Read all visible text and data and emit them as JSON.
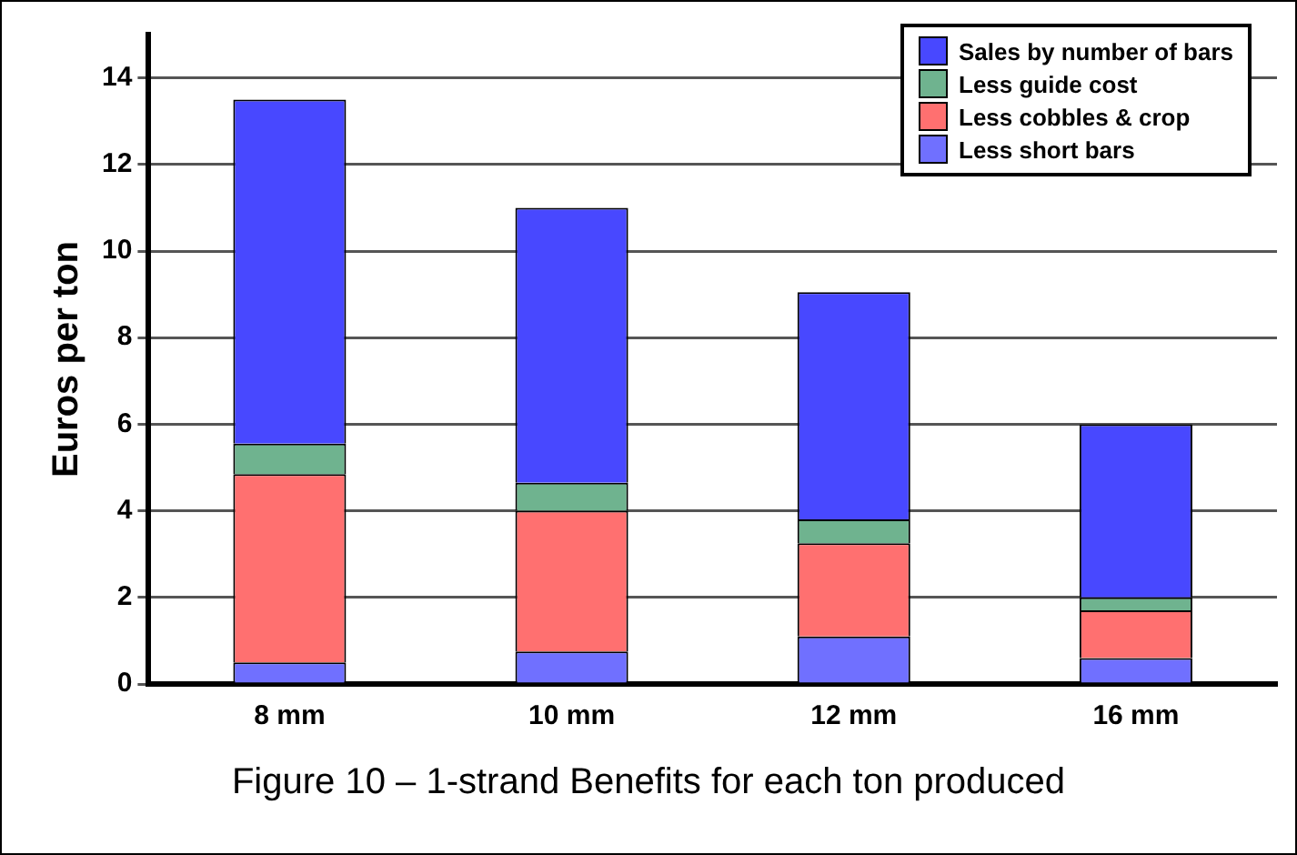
{
  "chart_data": {
    "type": "bar",
    "stacked": true,
    "ylabel": "Euros per ton",
    "categories": [
      "8 mm",
      "10 mm",
      "12 mm",
      "16 mm"
    ],
    "ylim": [
      0,
      15
    ],
    "yticks": [
      0,
      2,
      4,
      6,
      8,
      10,
      12,
      14
    ],
    "grid": "y",
    "legend": "top right",
    "annotations": [
      "Figure 10 – 1-strand Benefits for each ton produced"
    ],
    "series": [
      {
        "name": "Less short bars",
        "color": "#7070ff",
        "values": [
          0.5,
          0.75,
          1.1,
          0.6
        ]
      },
      {
        "name": "Less cobbles & crop",
        "color": "#ff7070",
        "values": [
          4.35,
          3.25,
          2.15,
          1.1
        ]
      },
      {
        "name": "Less guide cost",
        "color": "#6fb38f",
        "values": [
          0.7,
          0.65,
          0.55,
          0.3
        ]
      },
      {
        "name": "Sales by number of bars",
        "color": "#4848ff",
        "values": [
          7.95,
          6.35,
          5.25,
          4.0
        ]
      }
    ]
  }
}
